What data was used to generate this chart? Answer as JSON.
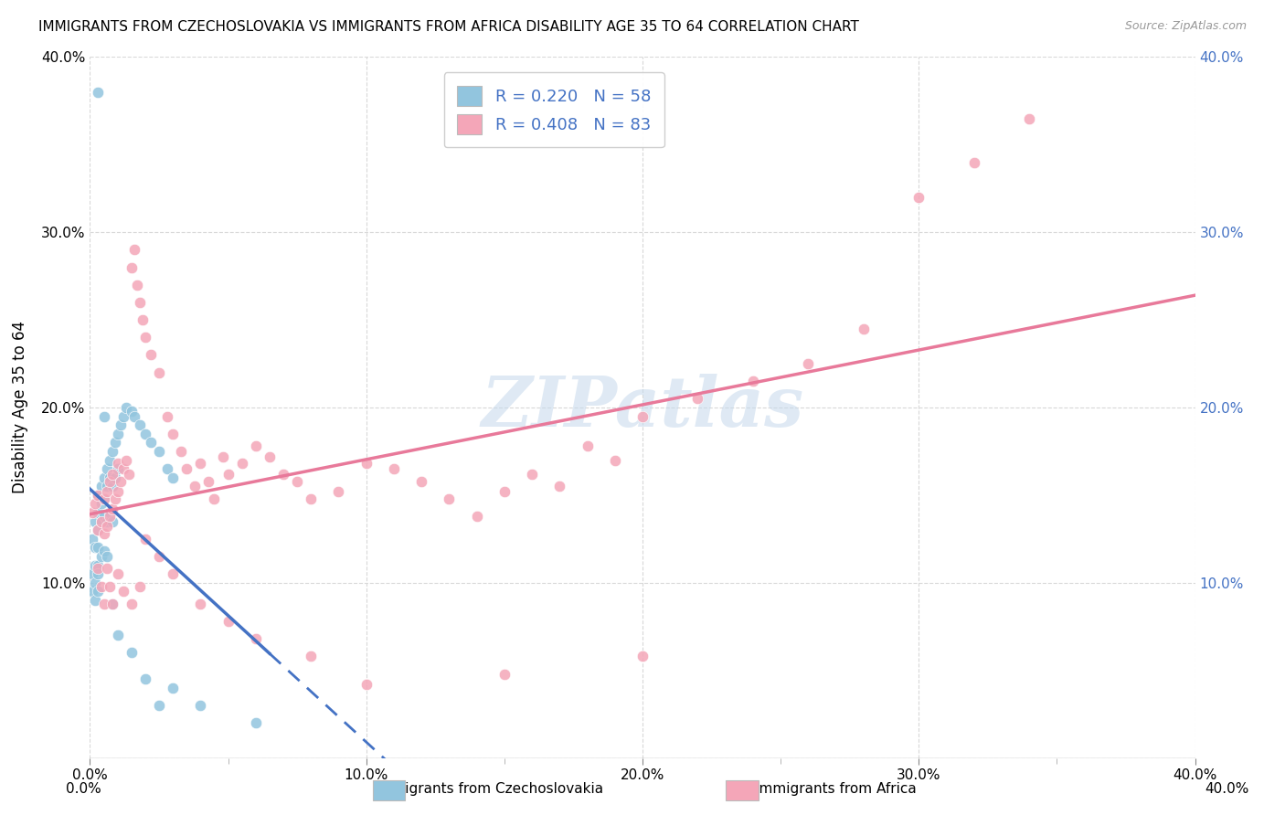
{
  "title": "IMMIGRANTS FROM CZECHOSLOVAKIA VS IMMIGRANTS FROM AFRICA DISABILITY AGE 35 TO 64 CORRELATION CHART",
  "source": "Source: ZipAtlas.com",
  "ylabel": "Disability Age 35 to 64",
  "xlim": [
    0.0,
    0.4
  ],
  "ylim": [
    0.0,
    0.4
  ],
  "xtick_vals": [
    0.0,
    0.05,
    0.1,
    0.15,
    0.2,
    0.25,
    0.3,
    0.35,
    0.4
  ],
  "xtick_major_vals": [
    0.0,
    0.1,
    0.2,
    0.3,
    0.4
  ],
  "ytick_vals": [
    0.0,
    0.1,
    0.2,
    0.3,
    0.4
  ],
  "watermark": "ZIPatlas",
  "color_czech": "#92c5de",
  "color_africa": "#f4a6b8",
  "trendline_czech_color": "#4472c4",
  "trendline_africa_color": "#e8799a",
  "background_color": "#ffffff",
  "grid_color": "#d8d8d8",
  "legend_label1": "Immigrants from Czechoslovakia",
  "legend_label2": "Immigrants from Africa",
  "legend_color1": "#92c5de",
  "legend_color2": "#f4a6b8",
  "right_axis_color": "#4472c4",
  "czech_x": [
    0.001,
    0.001,
    0.001,
    0.002,
    0.002,
    0.002,
    0.002,
    0.002,
    0.003,
    0.003,
    0.003,
    0.003,
    0.003,
    0.003,
    0.003,
    0.004,
    0.004,
    0.004,
    0.004,
    0.005,
    0.005,
    0.005,
    0.005,
    0.006,
    0.006,
    0.006,
    0.006,
    0.007,
    0.007,
    0.007,
    0.008,
    0.008,
    0.008,
    0.009,
    0.009,
    0.01,
    0.01,
    0.011,
    0.012,
    0.013,
    0.015,
    0.016,
    0.018,
    0.02,
    0.022,
    0.025,
    0.028,
    0.03,
    0.003,
    0.005,
    0.008,
    0.01,
    0.015,
    0.02,
    0.025,
    0.03,
    0.04,
    0.06
  ],
  "czech_y": [
    0.125,
    0.105,
    0.095,
    0.135,
    0.12,
    0.11,
    0.1,
    0.09,
    0.15,
    0.14,
    0.13,
    0.12,
    0.11,
    0.105,
    0.095,
    0.155,
    0.145,
    0.135,
    0.115,
    0.16,
    0.148,
    0.138,
    0.118,
    0.165,
    0.155,
    0.135,
    0.115,
    0.17,
    0.16,
    0.14,
    0.175,
    0.155,
    0.135,
    0.18,
    0.16,
    0.185,
    0.165,
    0.19,
    0.195,
    0.2,
    0.198,
    0.195,
    0.19,
    0.185,
    0.18,
    0.175,
    0.165,
    0.16,
    0.38,
    0.195,
    0.088,
    0.07,
    0.06,
    0.045,
    0.03,
    0.04,
    0.03,
    0.02
  ],
  "africa_x": [
    0.001,
    0.002,
    0.003,
    0.003,
    0.004,
    0.005,
    0.005,
    0.006,
    0.006,
    0.007,
    0.007,
    0.008,
    0.008,
    0.009,
    0.01,
    0.01,
    0.011,
    0.012,
    0.013,
    0.014,
    0.015,
    0.016,
    0.017,
    0.018,
    0.019,
    0.02,
    0.022,
    0.025,
    0.028,
    0.03,
    0.033,
    0.035,
    0.038,
    0.04,
    0.043,
    0.045,
    0.048,
    0.05,
    0.055,
    0.06,
    0.065,
    0.07,
    0.075,
    0.08,
    0.09,
    0.1,
    0.11,
    0.12,
    0.13,
    0.14,
    0.15,
    0.16,
    0.17,
    0.18,
    0.19,
    0.2,
    0.22,
    0.24,
    0.26,
    0.28,
    0.3,
    0.32,
    0.34,
    0.003,
    0.004,
    0.005,
    0.006,
    0.007,
    0.008,
    0.01,
    0.012,
    0.015,
    0.018,
    0.02,
    0.025,
    0.03,
    0.04,
    0.05,
    0.06,
    0.08,
    0.1,
    0.15,
    0.2
  ],
  "africa_y": [
    0.14,
    0.145,
    0.13,
    0.15,
    0.135,
    0.128,
    0.148,
    0.132,
    0.152,
    0.138,
    0.158,
    0.142,
    0.162,
    0.148,
    0.152,
    0.168,
    0.158,
    0.165,
    0.17,
    0.162,
    0.28,
    0.29,
    0.27,
    0.26,
    0.25,
    0.24,
    0.23,
    0.22,
    0.195,
    0.185,
    0.175,
    0.165,
    0.155,
    0.168,
    0.158,
    0.148,
    0.172,
    0.162,
    0.168,
    0.178,
    0.172,
    0.162,
    0.158,
    0.148,
    0.152,
    0.168,
    0.165,
    0.158,
    0.148,
    0.138,
    0.152,
    0.162,
    0.155,
    0.178,
    0.17,
    0.195,
    0.205,
    0.215,
    0.225,
    0.245,
    0.32,
    0.34,
    0.365,
    0.108,
    0.098,
    0.088,
    0.108,
    0.098,
    0.088,
    0.105,
    0.095,
    0.088,
    0.098,
    0.125,
    0.115,
    0.105,
    0.088,
    0.078,
    0.068,
    0.058,
    0.042,
    0.048,
    0.058
  ]
}
